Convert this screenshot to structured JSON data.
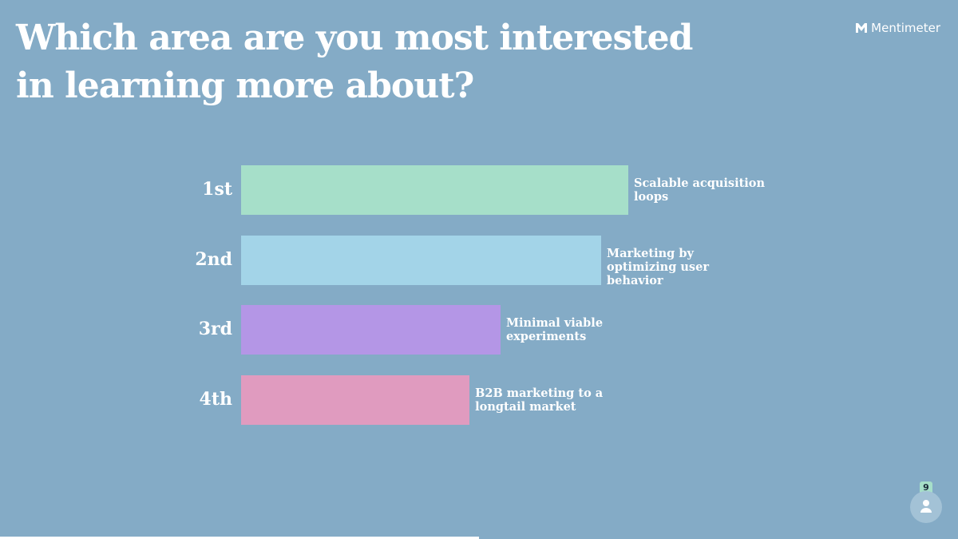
{
  "brand": "Mentimeter",
  "participants": 9,
  "chart_data": {
    "type": "bar",
    "orientation": "horizontal",
    "title": "Which area are you most interested in learning more about?",
    "categories": [
      "1st",
      "2nd",
      "3rd",
      "4th"
    ],
    "labels": [
      "Scalable acquisition loops",
      "Marketing by optimizing user behavior",
      "Minimal viable experiments",
      "B2B marketing to a longtail market"
    ],
    "values": [
      100,
      93,
      67,
      59
    ],
    "colors": [
      "#a6dfc9",
      "#a3d4e8",
      "#b496e6",
      "#e09bbf"
    ],
    "xlim": [
      0,
      100
    ]
  }
}
